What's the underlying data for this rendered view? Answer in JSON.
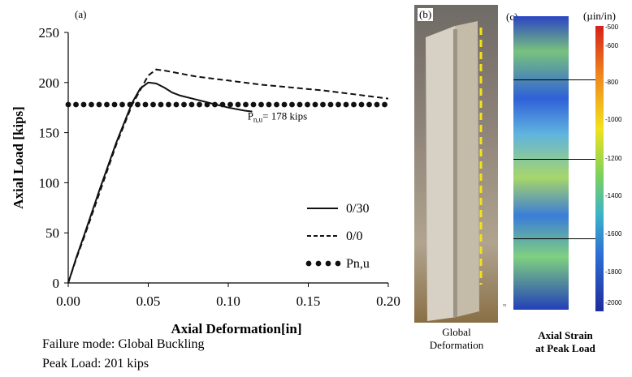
{
  "chart_data": [
    {
      "type": "line",
      "panel_label": "(a)",
      "xlabel": "Axial Deformation[in]",
      "ylabel": "Axial Load [kips]",
      "xlim": [
        0,
        0.2
      ],
      "ylim": [
        0,
        250
      ],
      "x_ticks": [
        "0.00",
        "0.05",
        "0.10",
        "0.15",
        "0.20"
      ],
      "y_ticks": [
        "0",
        "50",
        "100",
        "150",
        "200",
        "250"
      ],
      "grid": false,
      "legend_position": "bottom-right",
      "series": [
        {
          "name": "0/30",
          "style": "solid",
          "x": [
            0,
            0.005,
            0.01,
            0.02,
            0.03,
            0.04,
            0.045,
            0.05,
            0.055,
            0.06,
            0.065,
            0.07,
            0.08,
            0.09,
            0.1,
            0.11,
            0.115
          ],
          "y": [
            0,
            25,
            48,
            95,
            140,
            180,
            194,
            200,
            199,
            195,
            190,
            187,
            183,
            179,
            175,
            172,
            171
          ]
        },
        {
          "name": "0/0",
          "style": "dashed",
          "x": [
            0,
            0.005,
            0.01,
            0.02,
            0.03,
            0.04,
            0.05,
            0.055,
            0.06,
            0.07,
            0.08,
            0.1,
            0.12,
            0.14,
            0.16,
            0.18,
            0.2
          ],
          "y": [
            0,
            24,
            46,
            92,
            138,
            178,
            207,
            213,
            212,
            209,
            206,
            202,
            198,
            195,
            192,
            188,
            184
          ]
        },
        {
          "name": "Pn,u",
          "style": "dotted",
          "x": [
            0,
            0.2
          ],
          "y": [
            178,
            178
          ]
        }
      ],
      "annotations": [
        {
          "text": "P",
          "sub": "n,u",
          "rest": "= 178 kips",
          "x": 0.11,
          "y": 163
        }
      ]
    },
    {
      "type": "heatmap",
      "panel_label": "(c)",
      "unit": "(µin/in)",
      "colorbar_ticks": [
        "-500",
        "-600",
        "-800",
        "-1000",
        "-1200",
        "-1400",
        "-1600",
        "-1800",
        "-2000"
      ],
      "caption": [
        "Axial Strain",
        "at Peak Load"
      ]
    }
  ],
  "notes": [
    "Failure mode: Global Buckling",
    "Peak Load: 201 kips"
  ],
  "photo": {
    "panel_label": "(b)",
    "caption": [
      "Global",
      "Deformation"
    ]
  },
  "colors": {
    "curve": "#111111",
    "guide_line": "#f2e21c"
  },
  "icons": {
    "strain_marker": "tilde-icon"
  }
}
